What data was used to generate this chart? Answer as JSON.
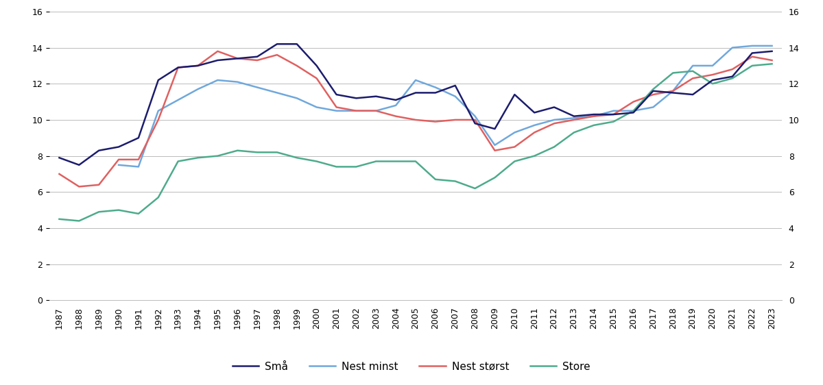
{
  "years": [
    1987,
    1988,
    1989,
    1990,
    1991,
    1992,
    1993,
    1994,
    1995,
    1996,
    1997,
    1998,
    1999,
    2000,
    2001,
    2002,
    2003,
    2004,
    2005,
    2006,
    2007,
    2008,
    2009,
    2010,
    2011,
    2012,
    2013,
    2014,
    2015,
    2016,
    2017,
    2018,
    2019,
    2020,
    2021,
    2022,
    2023
  ],
  "smaa": [
    7.9,
    7.5,
    8.3,
    8.5,
    9.0,
    12.2,
    12.9,
    13.0,
    13.3,
    13.4,
    13.5,
    14.2,
    14.2,
    13.0,
    11.4,
    11.2,
    11.3,
    11.1,
    11.5,
    11.5,
    11.9,
    9.8,
    9.5,
    11.4,
    10.4,
    10.7,
    10.2,
    10.3,
    10.3,
    10.4,
    11.6,
    11.5,
    11.4,
    12.2,
    12.4,
    13.7,
    13.8
  ],
  "nest_minst": [
    null,
    null,
    null,
    7.5,
    7.4,
    10.5,
    11.1,
    11.7,
    12.2,
    12.1,
    11.8,
    11.5,
    11.2,
    10.7,
    10.5,
    10.5,
    10.5,
    10.8,
    12.2,
    11.8,
    11.3,
    10.2,
    8.6,
    9.3,
    9.7,
    10.0,
    10.1,
    10.2,
    10.5,
    10.5,
    10.7,
    11.6,
    13.0,
    13.0,
    14.0,
    14.1,
    14.1
  ],
  "nest_storst": [
    7.0,
    6.3,
    6.4,
    7.8,
    7.8,
    10.0,
    12.9,
    13.0,
    13.8,
    13.4,
    13.3,
    13.6,
    13.0,
    12.3,
    10.7,
    10.5,
    10.5,
    10.2,
    10.0,
    9.9,
    10.0,
    10.0,
    8.3,
    8.5,
    9.3,
    9.8,
    10.0,
    10.2,
    10.3,
    11.0,
    11.4,
    11.6,
    12.3,
    12.5,
    12.8,
    13.5,
    13.3
  ],
  "store": [
    4.5,
    4.4,
    4.9,
    5.0,
    4.8,
    5.7,
    7.7,
    7.9,
    8.0,
    8.3,
    8.2,
    8.2,
    7.9,
    7.7,
    7.4,
    7.4,
    7.7,
    7.7,
    7.7,
    6.7,
    6.6,
    6.2,
    6.8,
    7.7,
    8.0,
    8.5,
    9.3,
    9.7,
    9.9,
    10.5,
    11.7,
    12.6,
    12.7,
    12.0,
    12.3,
    13.0,
    13.1
  ],
  "smaa_color": "#1c1c6e",
  "nest_minst_color": "#6fa8dc",
  "nest_storst_color": "#e06060",
  "store_color": "#4dab8c",
  "ylim": [
    0,
    16
  ],
  "yticks": [
    0,
    2,
    4,
    6,
    8,
    10,
    12,
    14,
    16
  ],
  "legend_labels": [
    "Små",
    "Nest minst",
    "Nest størst",
    "Store"
  ],
  "background_color": "#ffffff",
  "line_width": 1.8,
  "grid_color": "#bbbbbb",
  "tick_fontsize": 9,
  "legend_fontsize": 11
}
